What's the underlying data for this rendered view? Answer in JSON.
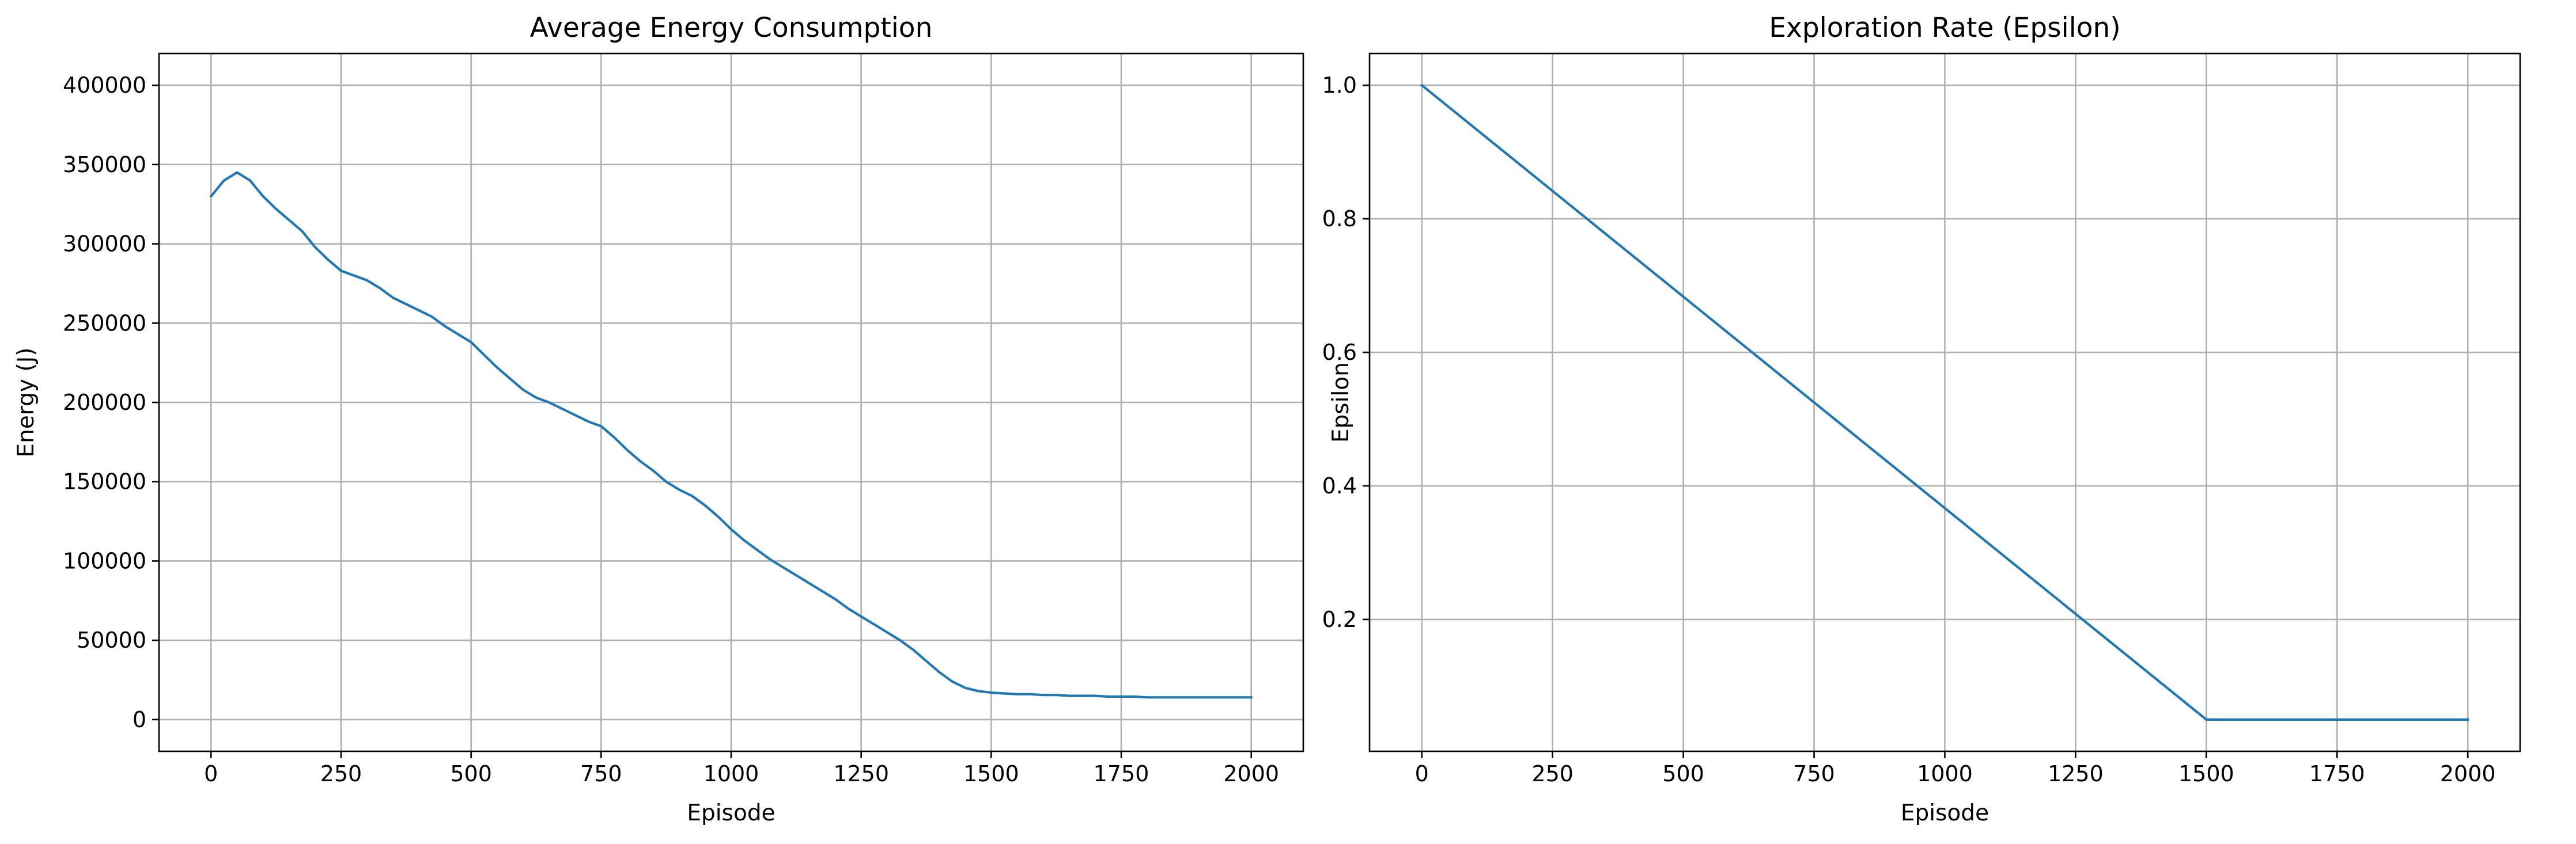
{
  "theme": {
    "line_color": "#1f77b4",
    "grid_color": "#b0b0b0"
  },
  "chart_data": [
    {
      "type": "line",
      "title": "Average Energy Consumption",
      "xlabel": "Episode",
      "ylabel": "Energy (J)",
      "xlim": [
        -100,
        2100
      ],
      "ylim": [
        -20000,
        420000
      ],
      "xticks": [
        0,
        250,
        500,
        750,
        1000,
        1250,
        1500,
        1750,
        2000
      ],
      "xtick_labels": [
        "0",
        "250",
        "500",
        "750",
        "1000",
        "1250",
        "1500",
        "1750",
        "2000"
      ],
      "yticks": [
        0,
        50000,
        100000,
        150000,
        200000,
        250000,
        300000,
        350000,
        400000
      ],
      "ytick_labels": [
        "0",
        "50000",
        "100000",
        "150000",
        "200000",
        "250000",
        "300000",
        "350000",
        "400000"
      ],
      "grid": true,
      "series": [
        {
          "x": [
            0,
            25,
            50,
            75,
            100,
            125,
            150,
            175,
            200,
            225,
            250,
            275,
            300,
            325,
            350,
            375,
            400,
            425,
            450,
            475,
            500,
            525,
            550,
            575,
            600,
            625,
            650,
            675,
            700,
            725,
            750,
            775,
            800,
            825,
            850,
            875,
            900,
            925,
            950,
            975,
            1000,
            1025,
            1050,
            1075,
            1100,
            1125,
            1150,
            1175,
            1200,
            1225,
            1250,
            1275,
            1300,
            1325,
            1350,
            1375,
            1400,
            1425,
            1450,
            1475,
            1500,
            1525,
            1550,
            1575,
            1600,
            1625,
            1650,
            1675,
            1700,
            1725,
            1750,
            1775,
            1800,
            1825,
            1850,
            1875,
            1900,
            1925,
            1950,
            1975,
            2000
          ],
          "y": [
            330000,
            340000,
            345000,
            340000,
            330000,
            322000,
            315000,
            308000,
            298000,
            290000,
            283000,
            280000,
            277000,
            272000,
            266000,
            262000,
            258000,
            254000,
            248000,
            243000,
            238000,
            230000,
            222000,
            215000,
            208000,
            203000,
            200000,
            196000,
            192000,
            188000,
            185000,
            178000,
            170000,
            163000,
            157000,
            150000,
            145000,
            141000,
            135000,
            128000,
            120000,
            113000,
            107000,
            101000,
            96000,
            91000,
            86000,
            81000,
            76000,
            70000,
            65000,
            60000,
            55000,
            50000,
            44000,
            37000,
            30000,
            24000,
            20000,
            18000,
            17000,
            16500,
            16000,
            16000,
            15500,
            15500,
            15000,
            15000,
            15000,
            14500,
            14500,
            14500,
            14000,
            14000,
            14000,
            14000,
            14000,
            14000,
            14000,
            14000,
            14000
          ]
        }
      ]
    },
    {
      "type": "line",
      "title": "Exploration Rate (Epsilon)",
      "xlabel": "Episode",
      "ylabel": "Epsilon",
      "xlim": [
        -100,
        2100
      ],
      "ylim": [
        0.0025,
        1.0475
      ],
      "xticks": [
        0,
        250,
        500,
        750,
        1000,
        1250,
        1500,
        1750,
        2000
      ],
      "xtick_labels": [
        "0",
        "250",
        "500",
        "750",
        "1000",
        "1250",
        "1500",
        "1750",
        "2000"
      ],
      "yticks": [
        0.2,
        0.4,
        0.6,
        0.8,
        1.0
      ],
      "ytick_labels": [
        "0.2",
        "0.4",
        "0.6",
        "0.8",
        "1.0"
      ],
      "grid": true,
      "series": [
        {
          "x": [
            0,
            1500,
            2000
          ],
          "y": [
            1.0,
            0.05,
            0.05
          ]
        }
      ]
    }
  ]
}
